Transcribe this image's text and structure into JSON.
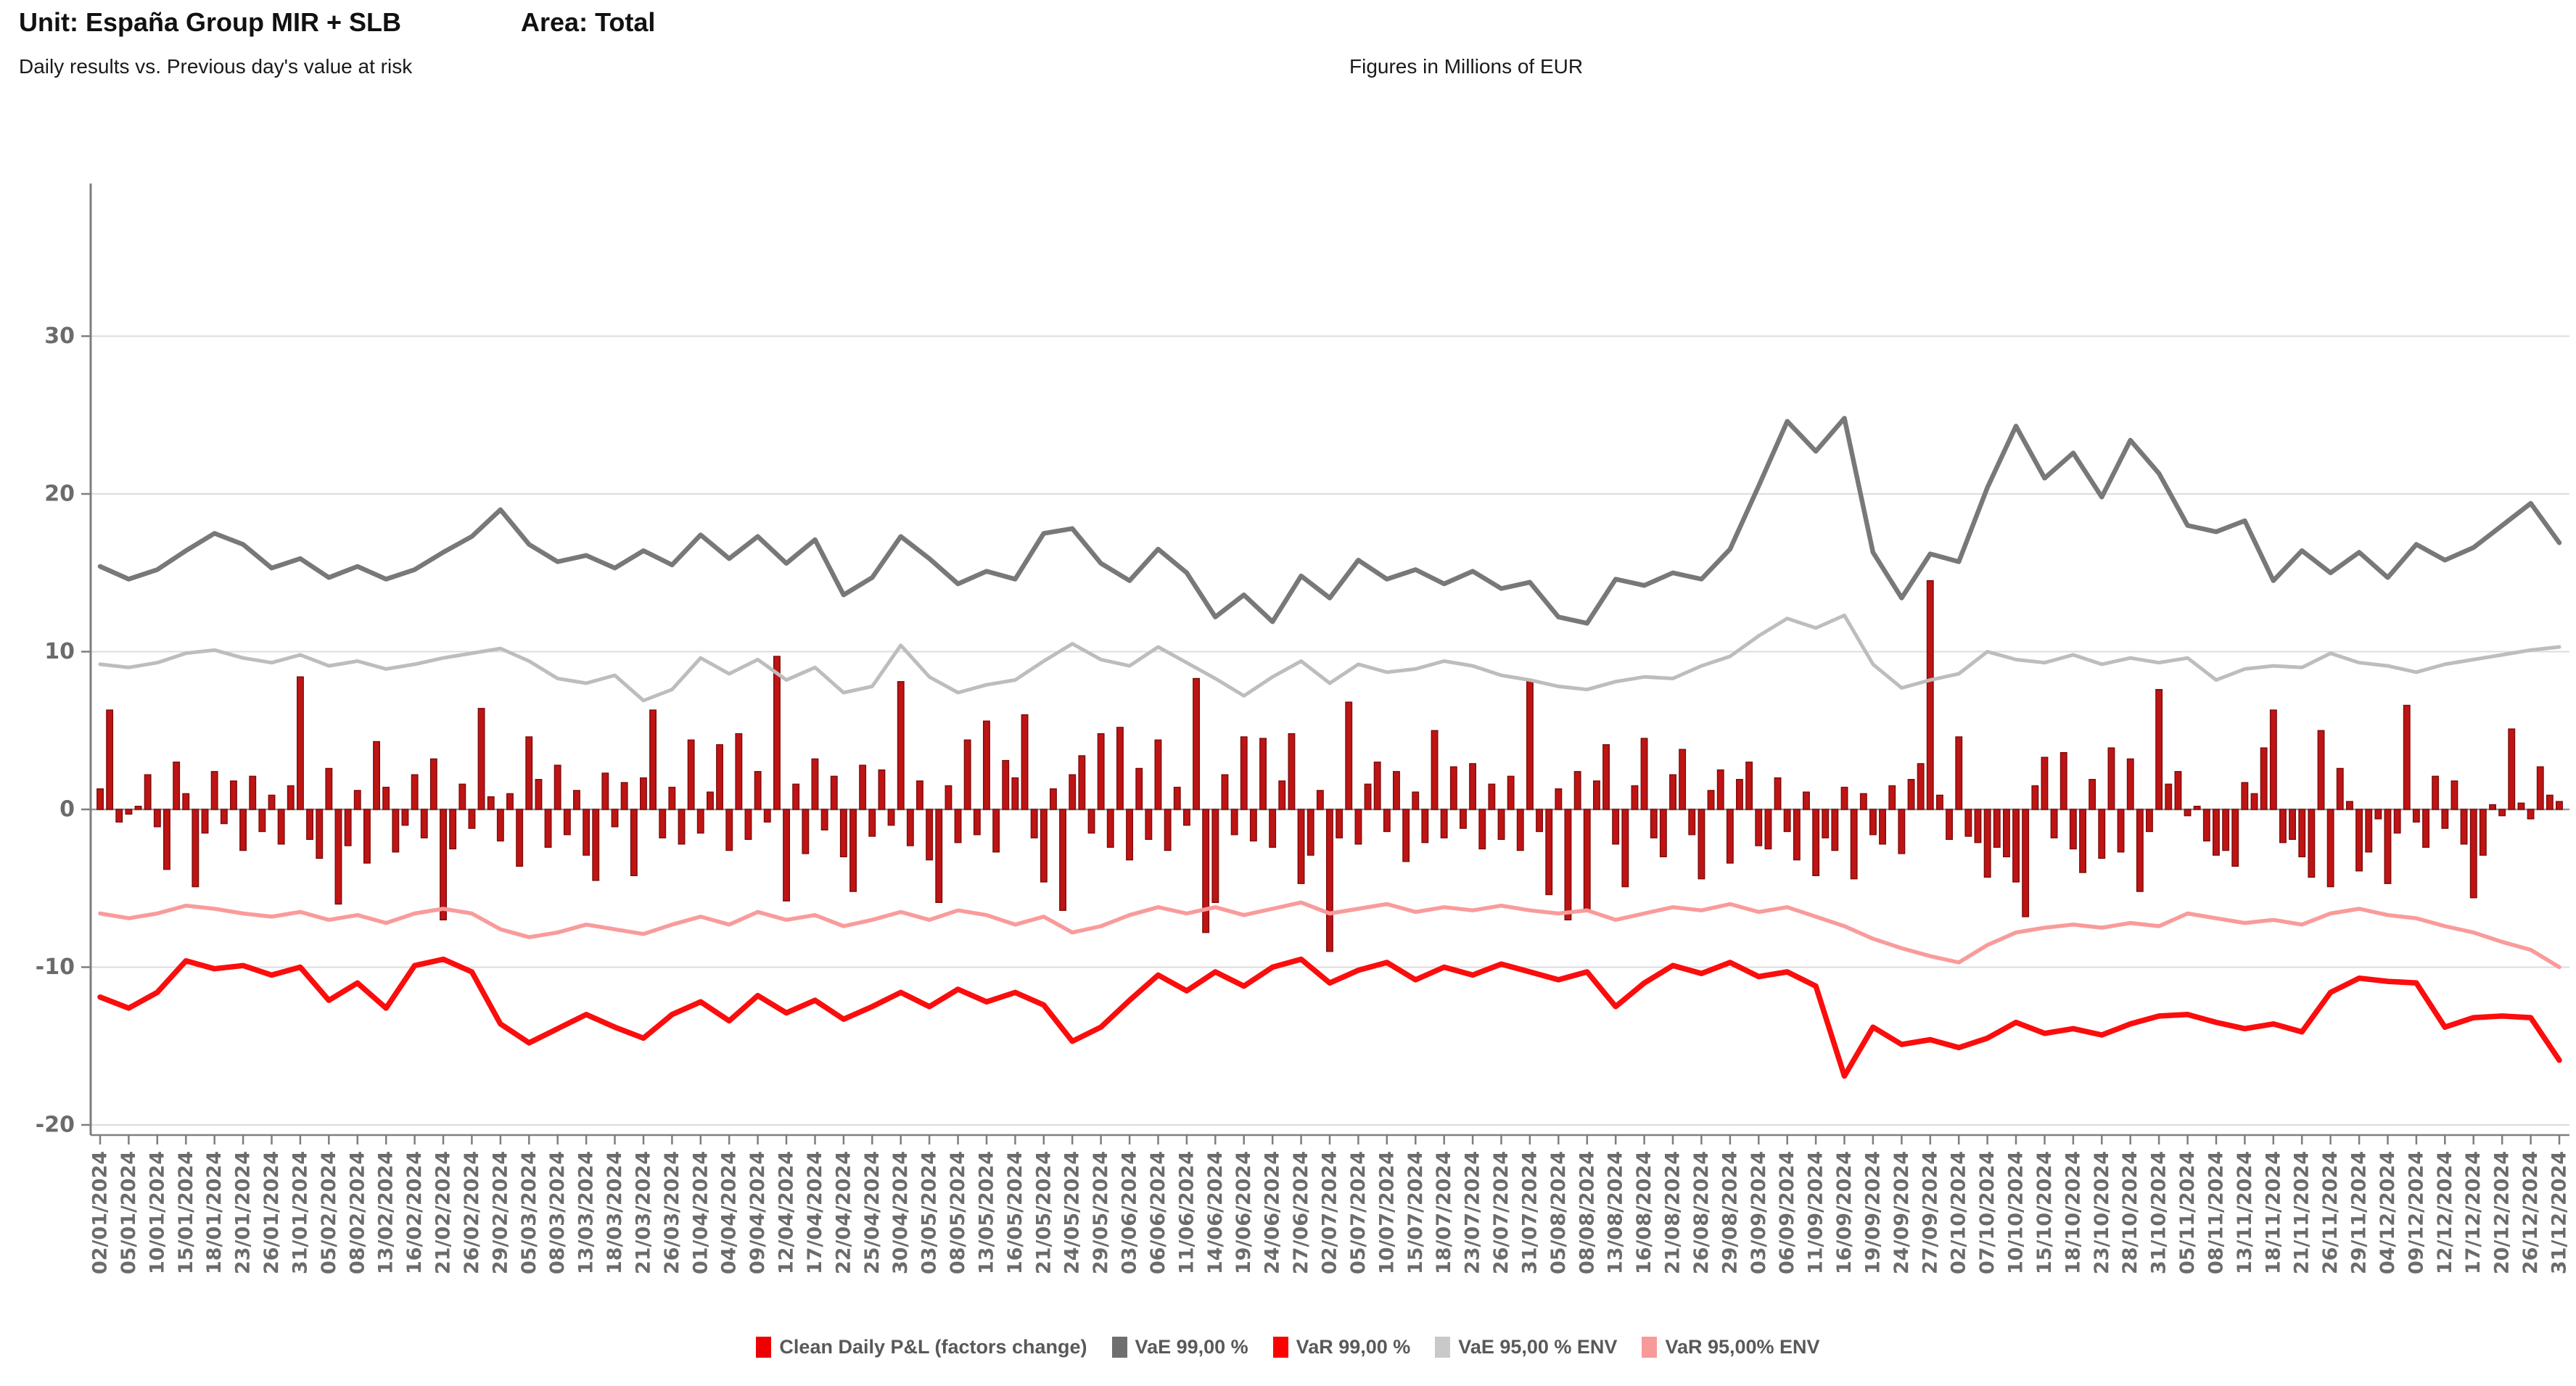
{
  "header": {
    "unit_label": "Unit: España Group MIR + SLB",
    "area_label": "Area: Total"
  },
  "subtitle": {
    "left": "Daily results vs. Previous day's value at risk",
    "right": "Figures in Millions of EUR"
  },
  "legend": {
    "items": [
      {
        "label": "Clean Daily P&L (factors change)",
        "color": "#ee0000"
      },
      {
        "label": "VaE 99,00 %",
        "color": "#6f6f6f"
      },
      {
        "label": "VaR 99,00 %",
        "color": "#ff0000"
      },
      {
        "label": "VaE 95,00 % ENV",
        "color": "#c9c9c9"
      },
      {
        "label": "VaR 95,00% ENV",
        "color": "#f89a9a"
      }
    ]
  },
  "chart_data": {
    "type": "bar+line",
    "title": "Daily results vs. Previous day's value at risk",
    "units": "Millions of EUR",
    "ylim": [
      -20.6,
      39.6
    ],
    "y_ticks": [
      30,
      20,
      10,
      0,
      -10,
      -20
    ],
    "grid": "horizontal",
    "legend_position": "bottom-center",
    "x_points_per_tick": 3,
    "x_tick_labels": [
      "02/01/2024",
      "05/01/2024",
      "10/01/2024",
      "15/01/2024",
      "18/01/2024",
      "23/01/2024",
      "26/01/2024",
      "31/01/2024",
      "05/02/2024",
      "08/02/2024",
      "13/02/2024",
      "16/02/2024",
      "21/02/2024",
      "26/02/2024",
      "29/02/2024",
      "05/03/2024",
      "08/03/2024",
      "13/03/2024",
      "18/03/2024",
      "21/03/2024",
      "26/03/2024",
      "01/04/2024",
      "04/04/2024",
      "09/04/2024",
      "12/04/2024",
      "17/04/2024",
      "22/04/2024",
      "25/04/2024",
      "30/04/2024",
      "03/05/2024",
      "08/05/2024",
      "13/05/2024",
      "16/05/2024",
      "21/05/2024",
      "24/05/2024",
      "29/05/2024",
      "03/06/2024",
      "06/06/2024",
      "11/06/2024",
      "14/06/2024",
      "19/06/2024",
      "24/06/2024",
      "27/06/2024",
      "02/07/2024",
      "05/07/2024",
      "10/07/2024",
      "15/07/2024",
      "18/07/2024",
      "23/07/2024",
      "26/07/2024",
      "31/07/2024",
      "05/08/2024",
      "08/08/2024",
      "13/08/2024",
      "16/08/2024",
      "21/08/2024",
      "26/08/2024",
      "29/08/2024",
      "03/09/2024",
      "06/09/2024",
      "11/09/2024",
      "16/09/2024",
      "19/09/2024",
      "24/09/2024",
      "27/09/2024",
      "02/10/2024",
      "07/10/2024",
      "10/10/2024",
      "15/10/2024",
      "18/10/2024",
      "23/10/2024",
      "28/10/2024",
      "31/10/2024",
      "05/11/2024",
      "08/11/2024",
      "13/11/2024",
      "18/11/2024",
      "21/11/2024",
      "26/11/2024",
      "29/11/2024",
      "04/12/2024",
      "09/12/2024",
      "12/12/2024",
      "17/12/2024",
      "20/12/2024",
      "26/12/2024",
      "31/12/2024"
    ],
    "bars": {
      "name": "Clean Daily P&L (factors change)",
      "color": "#bf1414",
      "edge_color": "#7d0b0b",
      "values": [
        1.3,
        6.3,
        -0.8,
        -0.3,
        0.2,
        2.2,
        -1.1,
        -3.8,
        3.0,
        1.0,
        -4.9,
        -1.5,
        2.4,
        -0.9,
        1.8,
        -2.6,
        2.1,
        -1.4,
        0.9,
        -2.2,
        1.5,
        8.4,
        -1.9,
        -3.1,
        2.6,
        -6.0,
        -2.3,
        1.2,
        -3.4,
        4.3,
        1.4,
        -2.7,
        -1.0,
        2.2,
        -1.8,
        3.2,
        -7.0,
        -2.5,
        1.6,
        -1.2,
        6.4,
        0.8,
        -2.0,
        1.0,
        -3.6,
        4.6,
        1.9,
        -2.4,
        2.8,
        -1.6,
        1.2,
        -2.9,
        -4.5,
        2.3,
        -1.1,
        1.7,
        -4.2,
        2.0,
        6.3,
        -1.8,
        1.4,
        -2.2,
        4.4,
        -1.5,
        1.1,
        4.1,
        -2.6,
        4.8,
        -1.9,
        2.4,
        -0.8,
        9.7,
        -5.8,
        1.6,
        -2.8,
        3.2,
        -1.3,
        2.1,
        -3.0,
        -5.2,
        2.8,
        -1.7,
        2.5,
        -1.0,
        8.1,
        -2.3,
        1.8,
        -3.2,
        -5.9,
        1.5,
        -2.1,
        4.4,
        -1.6,
        5.6,
        -2.7,
        3.1,
        2.0,
        6.0,
        -1.8,
        -4.6,
        1.3,
        -6.4,
        2.2,
        3.4,
        -1.5,
        4.8,
        -2.4,
        5.2,
        -3.2,
        2.6,
        -1.9,
        4.4,
        -2.6,
        1.4,
        -1.0,
        8.3,
        -7.8,
        -5.9,
        2.2,
        -1.6,
        4.6,
        -2.0,
        4.5,
        -2.4,
        1.8,
        4.8,
        -4.7,
        -2.9,
        1.2,
        -9.0,
        -1.8,
        6.8,
        -2.2,
        1.6,
        3.0,
        -1.4,
        2.4,
        -3.3,
        1.1,
        -2.1,
        5.0,
        -1.8,
        2.7,
        -1.2,
        2.9,
        -2.5,
        1.6,
        -1.9,
        2.1,
        -2.6,
        8.1,
        -1.4,
        -5.4,
        1.3,
        -7.0,
        2.4,
        -6.4,
        1.8,
        4.1,
        -2.2,
        -4.9,
        1.5,
        4.5,
        -1.8,
        -3.0,
        2.2,
        3.8,
        -1.6,
        -4.4,
        1.2,
        2.5,
        -3.4,
        1.9,
        3.0,
        -2.3,
        -2.5,
        2.0,
        -1.4,
        -3.2,
        1.1,
        -4.2,
        -1.8,
        -2.6,
        1.4,
        -4.4,
        1.0,
        -1.6,
        -2.2,
        1.5,
        -2.8,
        1.9,
        2.9,
        14.5,
        0.9,
        -1.9,
        4.6,
        -1.7,
        -2.1,
        -4.3,
        -2.4,
        -3.0,
        -4.6,
        -6.8,
        1.5,
        3.3,
        -1.8,
        3.6,
        -2.5,
        -4.0,
        1.9,
        -3.1,
        3.9,
        -2.7,
        3.2,
        -5.2,
        -1.4,
        7.6,
        1.6,
        2.4,
        -0.4,
        0.2,
        -2.0,
        -2.9,
        -2.6,
        -3.6,
        1.7,
        1.0,
        3.9,
        6.3,
        -2.1,
        -1.9,
        -3.0,
        -4.3,
        5.0,
        -4.9,
        2.6,
        0.5,
        -3.9,
        -2.7,
        -0.6,
        -4.7,
        -1.5,
        6.6,
        -0.8,
        -2.4,
        2.1,
        -1.2,
        1.8,
        -2.2,
        -5.6,
        -2.9,
        0.3,
        -0.4,
        5.1,
        0.4,
        -0.6,
        2.7,
        0.9,
        0.5
      ]
    },
    "series": [
      {
        "name": "VaE 99,00 %",
        "color": "#787878",
        "width": 6.5,
        "values": [
          15.4,
          14.6,
          15.2,
          16.4,
          17.5,
          16.8,
          15.3,
          15.9,
          14.7,
          15.4,
          14.6,
          15.2,
          16.3,
          17.3,
          19.0,
          16.8,
          15.7,
          16.1,
          15.3,
          16.4,
          15.5,
          17.4,
          15.9,
          17.3,
          15.6,
          17.1,
          13.6,
          14.7,
          17.3,
          15.9,
          14.3,
          15.1,
          14.6,
          17.5,
          17.8,
          15.6,
          14.5,
          16.5,
          15.0,
          12.2,
          13.6,
          11.9,
          14.8,
          13.4,
          15.8,
          14.6,
          15.2,
          14.3,
          15.1,
          14.0,
          14.4,
          12.2,
          11.8,
          14.6,
          14.2,
          15.0,
          14.6,
          16.5,
          20.5,
          24.6,
          22.7,
          24.8,
          16.3,
          13.4,
          16.2,
          15.7,
          20.4,
          24.3,
          21.0,
          22.6,
          19.8,
          23.4,
          21.3,
          18.0,
          17.6,
          18.3,
          14.5,
          16.4,
          15.0,
          16.3,
          14.7,
          16.8,
          15.8,
          16.6,
          18.0,
          19.4,
          16.9
        ]
      },
      {
        "name": "VaE 95,00 % ENV",
        "color": "#bdbdbd",
        "width": 5,
        "values": [
          9.2,
          9.0,
          9.3,
          9.9,
          10.1,
          9.6,
          9.3,
          9.8,
          9.1,
          9.4,
          8.9,
          9.2,
          9.6,
          9.9,
          10.2,
          9.4,
          8.3,
          8.0,
          8.5,
          6.9,
          7.6,
          9.6,
          8.6,
          9.5,
          8.2,
          9.0,
          7.4,
          7.8,
          10.4,
          8.4,
          7.4,
          7.9,
          8.2,
          9.4,
          10.5,
          9.5,
          9.1,
          10.3,
          9.3,
          8.3,
          7.2,
          8.4,
          9.4,
          8.0,
          9.2,
          8.7,
          8.9,
          9.4,
          9.1,
          8.5,
          8.2,
          7.8,
          7.6,
          8.1,
          8.4,
          8.3,
          9.1,
          9.7,
          11.0,
          12.1,
          11.5,
          12.3,
          9.2,
          7.7,
          8.2,
          8.6,
          10.0,
          9.5,
          9.3,
          9.8,
          9.2,
          9.6,
          9.3,
          9.6,
          8.2,
          8.9,
          9.1,
          9.0,
          9.9,
          9.3,
          9.1,
          8.7,
          9.2,
          9.5,
          9.8,
          10.1,
          10.3
        ]
      },
      {
        "name": "VaR 99,00 %",
        "color": "#fb0d0d",
        "width": 7.5,
        "values": [
          -11.9,
          -12.6,
          -11.6,
          -9.6,
          -10.1,
          -9.9,
          -10.5,
          -10.0,
          -12.1,
          -11.0,
          -12.6,
          -9.9,
          -9.5,
          -10.3,
          -13.6,
          -14.8,
          -13.9,
          -13.0,
          -13.8,
          -14.5,
          -13.0,
          -12.2,
          -13.4,
          -11.8,
          -12.9,
          -12.1,
          -13.3,
          -12.5,
          -11.6,
          -12.5,
          -11.4,
          -12.2,
          -11.6,
          -12.4,
          -14.7,
          -13.8,
          -12.1,
          -10.5,
          -11.5,
          -10.3,
          -11.2,
          -10.0,
          -9.5,
          -11.0,
          -10.2,
          -9.7,
          -10.8,
          -10.0,
          -10.5,
          -9.8,
          -10.3,
          -10.8,
          -10.3,
          -12.5,
          -11.0,
          -9.9,
          -10.4,
          -9.7,
          -10.6,
          -10.3,
          -11.2,
          -16.9,
          -13.8,
          -14.9,
          -14.6,
          -15.1,
          -14.5,
          -13.5,
          -14.2,
          -13.9,
          -14.3,
          -13.6,
          -13.1,
          -13.0,
          -13.5,
          -13.9,
          -13.6,
          -14.1,
          -11.6,
          -10.7,
          -10.9,
          -11.0,
          -13.8,
          -13.2,
          -13.1,
          -13.2,
          -15.9
        ]
      },
      {
        "name": "VaR 95,00% ENV",
        "color": "#f99b9b",
        "width": 5.5,
        "values": [
          -6.6,
          -6.9,
          -6.6,
          -6.1,
          -6.3,
          -6.6,
          -6.8,
          -6.5,
          -7.0,
          -6.7,
          -7.2,
          -6.6,
          -6.3,
          -6.6,
          -7.6,
          -8.1,
          -7.8,
          -7.3,
          -7.6,
          -7.9,
          -7.3,
          -6.8,
          -7.3,
          -6.5,
          -7.0,
          -6.7,
          -7.4,
          -7.0,
          -6.5,
          -7.0,
          -6.4,
          -6.7,
          -7.3,
          -6.8,
          -7.8,
          -7.4,
          -6.7,
          -6.2,
          -6.6,
          -6.2,
          -6.7,
          -6.3,
          -5.9,
          -6.6,
          -6.3,
          -6.0,
          -6.5,
          -6.2,
          -6.4,
          -6.1,
          -6.4,
          -6.6,
          -6.4,
          -7.0,
          -6.6,
          -6.2,
          -6.4,
          -6.0,
          -6.5,
          -6.2,
          -6.8,
          -7.4,
          -8.2,
          -8.8,
          -9.3,
          -9.7,
          -8.6,
          -7.8,
          -7.5,
          -7.3,
          -7.5,
          -7.2,
          -7.4,
          -6.6,
          -6.9,
          -7.2,
          -7.0,
          -7.3,
          -6.6,
          -6.3,
          -6.7,
          -6.9,
          -7.4,
          -7.8,
          -8.4,
          -8.9,
          -10.0
        ]
      }
    ],
    "style": {
      "grid_color": "#dcdcdc",
      "zero_line_color": "#999999",
      "axis_color": "#7e7e7e",
      "tick_label_color": "#6b6b6b"
    }
  }
}
